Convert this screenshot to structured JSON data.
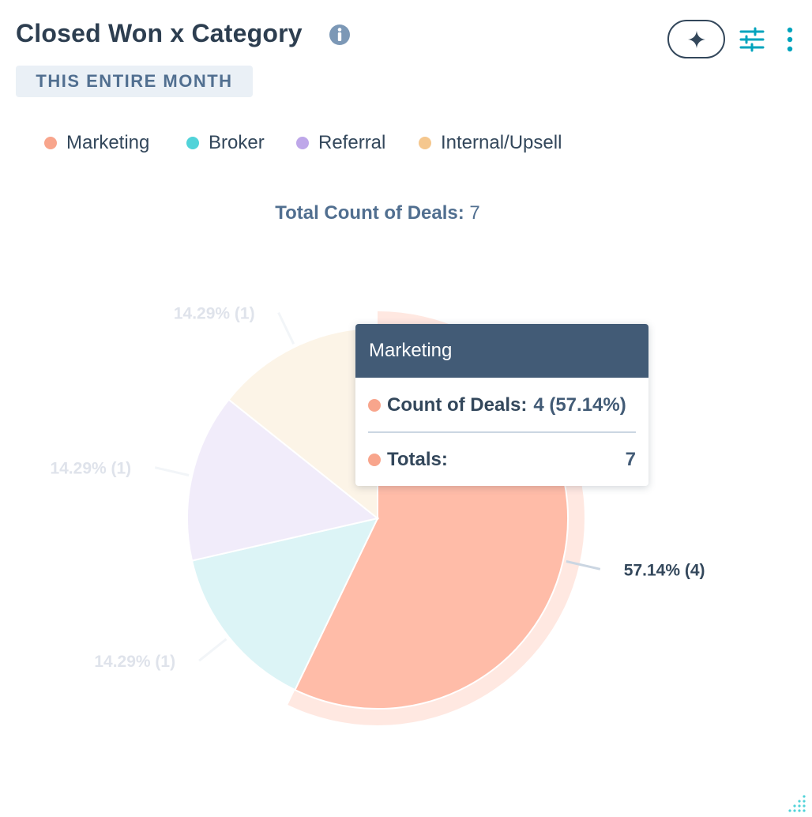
{
  "header": {
    "title": "Closed Won x Category",
    "date_badge": "THIS ENTIRE MONTH",
    "icons": [
      "info-icon",
      "sparkle-icon",
      "filter-sliders-icon",
      "more-vertical-icon",
      "resize-grip-icon"
    ]
  },
  "legend": {
    "items": [
      {
        "label": "Marketing",
        "color": "#f8a58c"
      },
      {
        "label": "Broker",
        "color": "#51d3d9"
      },
      {
        "label": "Referral",
        "color": "#bea7e9"
      },
      {
        "label": "Internal/Upsell",
        "color": "#f5c78e"
      }
    ]
  },
  "summary": {
    "label": "Total Count of Deals:",
    "value": "7"
  },
  "chart_data": {
    "type": "pie",
    "total": 7,
    "slices": [
      {
        "name": "Marketing",
        "value": 4,
        "percent": 57.14,
        "label": "57.14% (4)",
        "color": "#ffbca8",
        "highlighted": true
      },
      {
        "name": "Broker",
        "value": 1,
        "percent": 14.29,
        "label": "14.29% (1)",
        "color": "#dcf4f6",
        "highlighted": false
      },
      {
        "name": "Referral",
        "value": 1,
        "percent": 14.29,
        "label": "14.29% (1)",
        "color": "#f1ecfa",
        "highlighted": false
      },
      {
        "name": "Internal/Upsell",
        "value": 1,
        "percent": 14.29,
        "label": "14.29% (1)",
        "color": "#fcf4e7",
        "highlighted": false
      }
    ]
  },
  "tooltip": {
    "title": "Marketing",
    "row1_label": "Count of Deals:",
    "row1_value": "4 (57.14%)",
    "row2_label": "Totals:",
    "row2_value": "7",
    "dot_color": "#f8a58c"
  }
}
